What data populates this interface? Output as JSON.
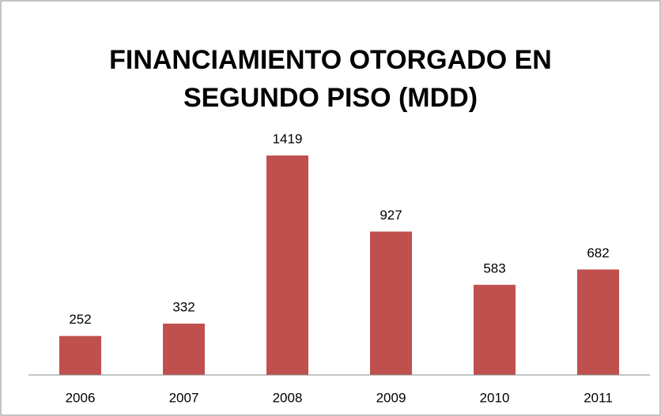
{
  "chart_data": {
    "type": "bar",
    "title": [
      "FINANCIAMIENTO OTORGADO EN",
      "SEGUNDO PISO (MDD)"
    ],
    "categories": [
      "2006",
      "2007",
      "2008",
      "2009",
      "2010",
      "2011"
    ],
    "values": [
      252,
      332,
      1419,
      927,
      583,
      682
    ],
    "color": "#c0504d"
  }
}
